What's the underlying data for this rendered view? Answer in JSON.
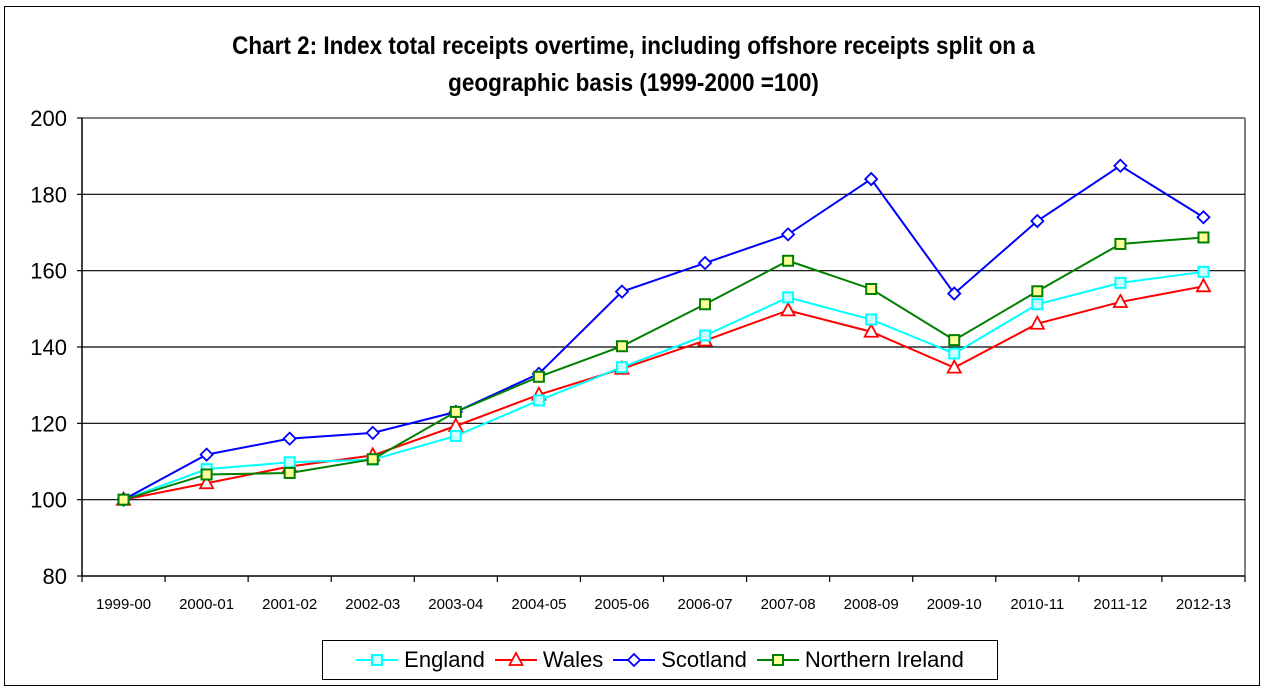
{
  "chart_data": {
    "type": "line",
    "title": "Chart 2: Index total receipts overtime, including offshore receipts split on a geographic basis (1999-2000 =100)",
    "title_lines": [
      "Chart 2: Index total receipts overtime, including offshore receipts split on a",
      "geographic basis (1999-2000 =100)"
    ],
    "xlabel": "",
    "ylabel": "",
    "ylim": [
      80,
      200
    ],
    "yticks": [
      80,
      100,
      120,
      140,
      160,
      180,
      200
    ],
    "grid": true,
    "legend_position": "bottom",
    "categories": [
      "1999-00",
      "2000-01",
      "2001-02",
      "2002-03",
      "2003-04",
      "2004-05",
      "2005-06",
      "2006-07",
      "2007-08",
      "2008-09",
      "2009-10",
      "2010-11",
      "2011-12",
      "2012-13"
    ],
    "series": [
      {
        "name": "England",
        "color": "#00ffff",
        "marker": "square",
        "marker_fill": "#ccffff",
        "values": [
          100,
          108.0,
          109.8,
          110.5,
          116.7,
          126.0,
          134.7,
          143.0,
          153.0,
          147.2,
          138.3,
          151.2,
          156.8,
          159.7
        ]
      },
      {
        "name": "Wales",
        "color": "#ff0000",
        "marker": "triangle",
        "marker_fill": "#ffffff",
        "values": [
          100,
          104.3,
          108.7,
          111.6,
          119.3,
          127.5,
          134.3,
          141.7,
          149.6,
          144.0,
          134.6,
          146.1,
          151.8,
          155.9
        ]
      },
      {
        "name": "Scotland",
        "color": "#0000ff",
        "marker": "diamond",
        "marker_fill": "#ffffff",
        "values": [
          100,
          111.8,
          116.0,
          117.5,
          123.0,
          133.0,
          154.5,
          162.0,
          169.5,
          184.0,
          154.0,
          173.0,
          187.5,
          174.0
        ]
      },
      {
        "name": "Northern Ireland",
        "color": "#008000",
        "marker": "square",
        "marker_fill": "#ffff99",
        "values": [
          100,
          106.6,
          107.0,
          110.6,
          123.0,
          132.2,
          140.2,
          151.2,
          162.6,
          155.2,
          141.8,
          154.6,
          167.0,
          168.7
        ]
      }
    ]
  }
}
